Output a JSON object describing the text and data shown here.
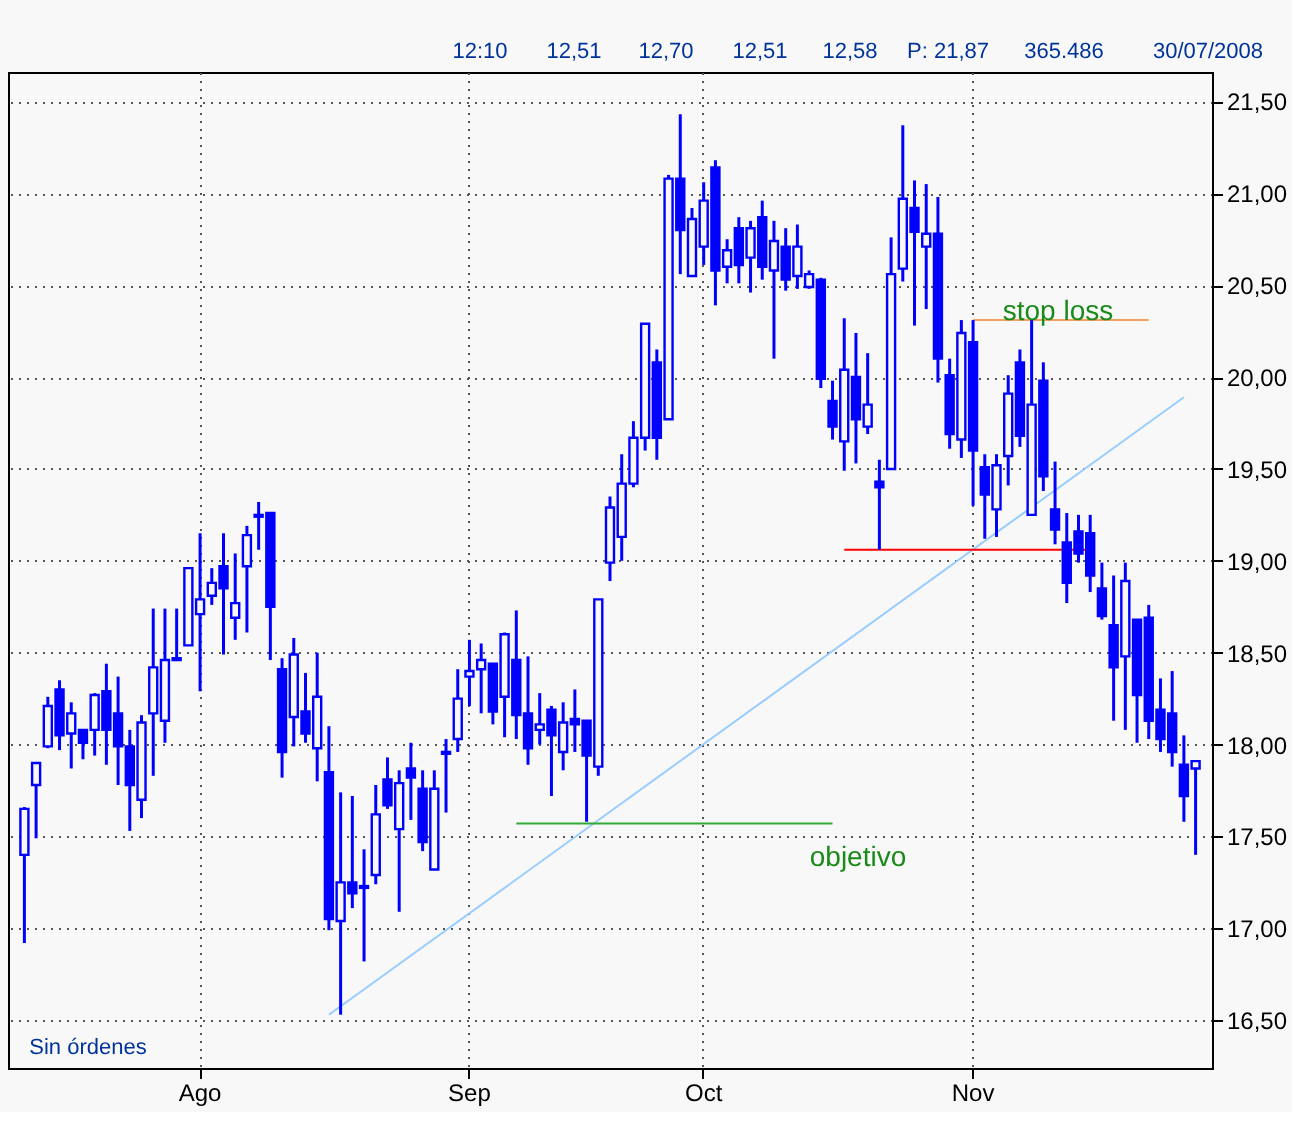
{
  "chart_data": {
    "type": "candlestick",
    "color": "#0000ff",
    "categories": [
      null,
      null,
      null,
      null,
      null,
      null,
      null,
      null,
      null,
      null,
      null,
      null,
      null,
      null,
      null,
      "Ago",
      null,
      null,
      null,
      null,
      null,
      null,
      null,
      null,
      null,
      null,
      null,
      null,
      null,
      null,
      null,
      null,
      null,
      null,
      null,
      null,
      null,
      null,
      "Sep",
      null,
      null,
      null,
      null,
      null,
      null,
      null,
      null,
      null,
      null,
      null,
      null,
      null,
      null,
      null,
      null,
      null,
      null,
      null,
      "Oct",
      null,
      null,
      null,
      null,
      null,
      null,
      null,
      null,
      null,
      null,
      null,
      null,
      null,
      null,
      null,
      null,
      null,
      null,
      null,
      null,
      null,
      null,
      "Nov",
      null,
      null,
      null,
      null,
      null,
      null,
      null,
      null,
      null,
      null,
      null,
      null,
      null,
      null,
      null,
      null,
      null,
      null,
      null
    ],
    "ohlc": [
      [
        17.4,
        17.66,
        16.92,
        17.65
      ],
      [
        17.78,
        17.9,
        17.49,
        17.9
      ],
      [
        17.99,
        18.26,
        17.98,
        18.21
      ],
      [
        18.3,
        18.35,
        17.97,
        18.05
      ],
      [
        18.06,
        18.23,
        17.87,
        18.17
      ],
      [
        18.08,
        18.08,
        17.92,
        18.01
      ],
      [
        18.08,
        18.28,
        17.94,
        18.27
      ],
      [
        18.29,
        18.44,
        17.89,
        18.08
      ],
      [
        18.17,
        18.37,
        17.78,
        17.99
      ],
      [
        17.99,
        18.08,
        17.53,
        17.78
      ],
      [
        17.7,
        18.16,
        17.6,
        18.12
      ],
      [
        18.17,
        18.74,
        17.83,
        18.42
      ],
      [
        18.13,
        18.74,
        18.01,
        18.46
      ],
      [
        18.46,
        18.74,
        18.46,
        18.47
      ],
      [
        18.54,
        18.96,
        18.54,
        18.96
      ],
      [
        18.71,
        19.15,
        18.29,
        18.79
      ],
      [
        18.81,
        18.96,
        18.76,
        18.88
      ],
      [
        18.97,
        19.15,
        18.49,
        18.85
      ],
      [
        18.69,
        19.04,
        18.57,
        18.77
      ],
      [
        18.97,
        19.19,
        18.61,
        19.14
      ],
      [
        19.24,
        19.32,
        19.06,
        19.25
      ],
      [
        19.26,
        19.26,
        18.46,
        18.75
      ],
      [
        18.41,
        18.47,
        17.82,
        17.96
      ],
      [
        18.15,
        18.58,
        17.99,
        18.49
      ],
      [
        18.18,
        18.39,
        18.01,
        18.06
      ],
      [
        17.98,
        18.5,
        17.8,
        18.26
      ],
      [
        17.85,
        18.1,
        16.99,
        17.05
      ],
      [
        17.04,
        17.74,
        16.53,
        17.25
      ],
      [
        17.25,
        17.72,
        17.11,
        17.19
      ],
      [
        17.22,
        17.43,
        16.82,
        17.23
      ],
      [
        17.29,
        17.78,
        17.24,
        17.62
      ],
      [
        17.81,
        17.93,
        17.65,
        17.67
      ],
      [
        17.54,
        17.86,
        17.09,
        17.79
      ],
      [
        17.87,
        18.01,
        17.59,
        17.82
      ],
      [
        17.76,
        17.86,
        17.42,
        17.47
      ],
      [
        17.32,
        17.86,
        17.32,
        17.76
      ],
      [
        17.95,
        18.03,
        17.63,
        17.96
      ],
      [
        18.03,
        18.41,
        17.96,
        18.25
      ],
      [
        18.37,
        18.57,
        18.21,
        18.4
      ],
      [
        18.41,
        18.55,
        18.17,
        18.46
      ],
      [
        18.44,
        18.44,
        18.11,
        18.18
      ],
      [
        18.26,
        18.61,
        18.04,
        18.6
      ],
      [
        18.46,
        18.73,
        18.03,
        18.16
      ],
      [
        18.17,
        18.48,
        17.89,
        17.98
      ],
      [
        18.08,
        18.28,
        18.0,
        18.11
      ],
      [
        18.19,
        18.21,
        17.72,
        18.05
      ],
      [
        17.96,
        18.23,
        17.86,
        18.12
      ],
      [
        18.14,
        18.3,
        17.96,
        18.11
      ],
      [
        18.13,
        18.13,
        17.58,
        17.94
      ],
      [
        17.88,
        18.79,
        17.83,
        18.79
      ],
      [
        18.99,
        19.35,
        18.89,
        19.29
      ],
      [
        19.13,
        19.58,
        19.0,
        19.42
      ],
      [
        19.42,
        19.76,
        19.4,
        19.67
      ],
      [
        19.67,
        20.29,
        19.6,
        20.29
      ],
      [
        20.08,
        20.15,
        19.55,
        19.67
      ],
      [
        19.77,
        21.1,
        19.77,
        21.08
      ],
      [
        21.08,
        21.43,
        20.56,
        20.8
      ],
      [
        20.55,
        20.92,
        20.55,
        20.86
      ],
      [
        20.71,
        21.06,
        20.61,
        20.96
      ],
      [
        21.14,
        21.18,
        20.39,
        20.58
      ],
      [
        20.6,
        20.75,
        20.51,
        20.69
      ],
      [
        20.81,
        20.87,
        20.51,
        20.61
      ],
      [
        20.65,
        20.85,
        20.46,
        20.81
      ],
      [
        20.87,
        20.96,
        20.53,
        20.6
      ],
      [
        20.58,
        20.85,
        20.1,
        20.74
      ],
      [
        20.71,
        20.81,
        20.47,
        20.53
      ],
      [
        20.55,
        20.83,
        20.48,
        20.71
      ],
      [
        20.49,
        20.58,
        20.48,
        20.56
      ],
      [
        20.53,
        20.54,
        19.94,
        19.99
      ],
      [
        19.87,
        19.98,
        19.66,
        19.73
      ],
      [
        19.65,
        20.32,
        19.49,
        20.04
      ],
      [
        20.0,
        20.24,
        19.53,
        19.77
      ],
      [
        19.73,
        20.13,
        19.69,
        19.85
      ],
      [
        19.43,
        19.55,
        19.06,
        19.4
      ],
      [
        19.5,
        20.76,
        19.5,
        20.56
      ],
      [
        20.59,
        21.37,
        20.52,
        20.97
      ],
      [
        20.92,
        21.07,
        20.28,
        20.79
      ],
      [
        20.71,
        21.05,
        20.37,
        20.78
      ],
      [
        20.78,
        20.98,
        19.97,
        20.1
      ],
      [
        20.01,
        20.1,
        19.61,
        19.69
      ],
      [
        19.66,
        20.31,
        19.56,
        20.24
      ],
      [
        20.19,
        20.31,
        19.3,
        19.6
      ],
      [
        19.51,
        19.58,
        19.12,
        19.36
      ],
      [
        19.28,
        19.58,
        19.13,
        19.52
      ],
      [
        19.57,
        20.01,
        19.41,
        19.91
      ],
      [
        20.08,
        20.15,
        19.62,
        19.68
      ],
      [
        19.25,
        20.31,
        19.25,
        19.85
      ],
      [
        19.98,
        20.08,
        19.38,
        19.46
      ],
      [
        19.28,
        19.54,
        19.09,
        19.17
      ],
      [
        19.1,
        19.26,
        18.77,
        18.88
      ],
      [
        19.16,
        19.25,
        18.99,
        19.04
      ],
      [
        19.15,
        19.25,
        18.83,
        18.92
      ],
      [
        18.85,
        18.99,
        18.68,
        18.7
      ],
      [
        18.65,
        18.92,
        18.13,
        18.42
      ],
      [
        18.48,
        18.99,
        18.08,
        18.89
      ],
      [
        18.68,
        18.68,
        18.01,
        18.27
      ],
      [
        18.69,
        18.76,
        18.03,
        18.13
      ],
      [
        18.19,
        18.36,
        17.96,
        18.03
      ],
      [
        18.17,
        18.4,
        17.88,
        17.96
      ],
      [
        17.89,
        18.05,
        17.58,
        17.72
      ],
      [
        17.87,
        17.91,
        17.4,
        17.91
      ]
    ],
    "series": [
      {
        "type": "line",
        "color": "#99ccff",
        "values": [
          null,
          null,
          null,
          null,
          null,
          null,
          null,
          null,
          null,
          null,
          null,
          null,
          null,
          null,
          null,
          null,
          null,
          null,
          null,
          null,
          null,
          null,
          null,
          null,
          null,
          null,
          16.53,
          null,
          null,
          null,
          null,
          null,
          null,
          null,
          null,
          null,
          null,
          null,
          null,
          null,
          null,
          null,
          null,
          null,
          null,
          null,
          null,
          null,
          null,
          null,
          null,
          null,
          null,
          null,
          null,
          null,
          null,
          null,
          null,
          null,
          null,
          null,
          null,
          null,
          null,
          null,
          null,
          null,
          null,
          null,
          null,
          null,
          null,
          null,
          null,
          null,
          null,
          null,
          null,
          null,
          null,
          null,
          null,
          null,
          null,
          null,
          null,
          null,
          null,
          null,
          null,
          null,
          null,
          null,
          null,
          null,
          null,
          null,
          null,
          19.89,
          null
        ]
      },
      {
        "type": "line",
        "color": "#ff0000",
        "values": [
          null,
          null,
          null,
          null,
          null,
          null,
          null,
          null,
          null,
          null,
          null,
          null,
          null,
          null,
          null,
          null,
          null,
          null,
          null,
          null,
          null,
          null,
          null,
          null,
          null,
          null,
          null,
          null,
          null,
          null,
          null,
          null,
          null,
          null,
          null,
          null,
          null,
          null,
          null,
          null,
          null,
          null,
          null,
          null,
          null,
          null,
          null,
          null,
          null,
          null,
          null,
          null,
          null,
          null,
          null,
          null,
          null,
          null,
          null,
          null,
          null,
          null,
          null,
          null,
          null,
          null,
          null,
          null,
          null,
          null,
          19.06,
          null,
          null,
          null,
          null,
          null,
          null,
          null,
          null,
          null,
          null,
          null,
          null,
          null,
          null,
          null,
          null,
          null,
          null,
          null,
          null,
          19.06,
          null,
          null,
          null,
          null,
          null,
          null,
          null,
          null,
          null
        ]
      },
      {
        "type": "line",
        "color": "#33aa33",
        "values": [
          null,
          null,
          null,
          null,
          null,
          null,
          null,
          null,
          null,
          null,
          null,
          null,
          null,
          null,
          null,
          null,
          null,
          null,
          null,
          null,
          null,
          null,
          null,
          null,
          null,
          null,
          null,
          null,
          null,
          null,
          null,
          null,
          null,
          null,
          null,
          null,
          null,
          null,
          null,
          null,
          null,
          null,
          17.57,
          null,
          null,
          null,
          null,
          null,
          null,
          null,
          null,
          null,
          null,
          null,
          null,
          null,
          null,
          null,
          null,
          null,
          null,
          null,
          null,
          null,
          null,
          null,
          null,
          null,
          null,
          17.57,
          null,
          null,
          null,
          null,
          null,
          null,
          null,
          null,
          null,
          null,
          null,
          null,
          null,
          null,
          null,
          null,
          null,
          null,
          null,
          null,
          null,
          null,
          null,
          null,
          null,
          null,
          null,
          null,
          null,
          null,
          null
        ]
      },
      {
        "type": "line",
        "color": "#f0a060",
        "values": [
          null,
          null,
          null,
          null,
          null,
          null,
          null,
          null,
          null,
          null,
          null,
          null,
          null,
          null,
          null,
          null,
          null,
          null,
          null,
          null,
          null,
          null,
          null,
          null,
          null,
          null,
          null,
          null,
          null,
          null,
          null,
          null,
          null,
          null,
          null,
          null,
          null,
          null,
          null,
          null,
          null,
          null,
          null,
          null,
          null,
          null,
          null,
          null,
          null,
          null,
          null,
          null,
          null,
          null,
          null,
          null,
          null,
          null,
          null,
          null,
          null,
          null,
          null,
          null,
          null,
          null,
          null,
          null,
          null,
          null,
          null,
          null,
          null,
          null,
          null,
          null,
          null,
          null,
          null,
          null,
          null,
          20.31,
          null,
          null,
          null,
          null,
          null,
          null,
          null,
          null,
          null,
          null,
          null,
          null,
          null,
          null,
          20.31,
          null,
          null,
          null,
          null
        ]
      }
    ],
    "ylim": [
      16.24,
      21.66
    ],
    "yticks": [
      {
        "value": 16.5,
        "label": "16,50"
      },
      {
        "value": 17,
        "label": "17,00"
      },
      {
        "value": 17.5,
        "label": "17,50"
      },
      {
        "value": 18,
        "label": "18,00"
      },
      {
        "value": 18.5,
        "label": "18,50"
      },
      {
        "value": 19,
        "label": "19,00"
      },
      {
        "value": 19.5,
        "label": "19,50"
      },
      {
        "value": 20,
        "label": "20,00"
      },
      {
        "value": 20.5,
        "label": "20,50"
      },
      {
        "value": 21,
        "label": "21,00"
      },
      {
        "value": 21.5,
        "label": "21,50"
      }
    ],
    "grid": true,
    "annotations": [
      "12:10",
      "12,51",
      "12,70",
      "12,51",
      "12,58",
      "P: 21,87",
      "365.486",
      "30/07/2008",
      "Sin órdenes",
      "stop loss",
      "objetivo"
    ]
  }
}
